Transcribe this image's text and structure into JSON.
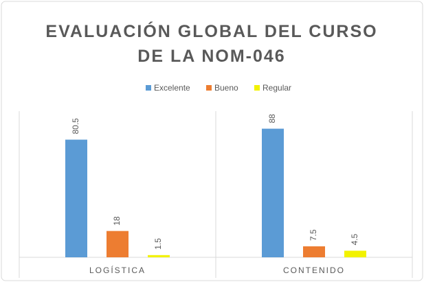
{
  "chart_data": {
    "type": "bar",
    "title": "EVALUACIÓN GLOBAL DEL CURSO DE LA NOM-046",
    "categories": [
      "LOGÍSTICA",
      "CONTENIDO"
    ],
    "series": [
      {
        "name": "Excelente",
        "color": "#5b9bd5",
        "values": [
          80.5,
          88
        ]
      },
      {
        "name": "Bueno",
        "color": "#ed7d31",
        "values": [
          18,
          7.5
        ]
      },
      {
        "name": "Regular",
        "color": "#f2f200",
        "values": [
          1.5,
          4.5
        ]
      }
    ],
    "ylim": [
      0,
      100
    ],
    "legend": "top",
    "grid": false
  }
}
